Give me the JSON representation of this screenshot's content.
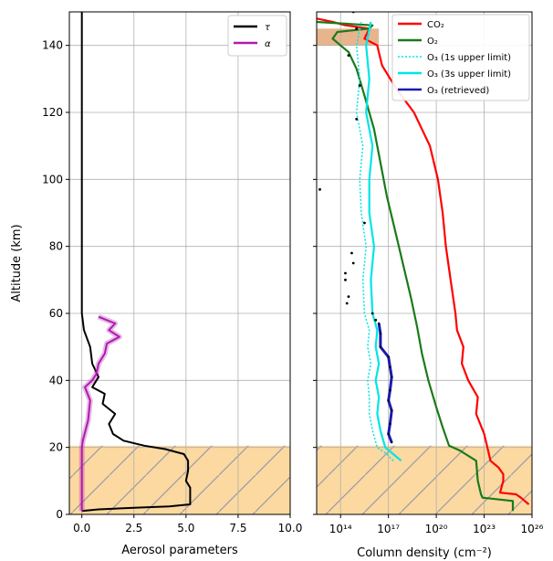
{
  "chart_data": [
    {
      "type": "line",
      "panel": "left",
      "xlabel": "Aerosol parameters",
      "ylabel": "Altitude (km)",
      "xlim": [
        -0.6,
        10.0
      ],
      "ylim": [
        0,
        150
      ],
      "xticks": [
        "0.0",
        "2.5",
        "5.0",
        "7.5",
        "10.0"
      ],
      "xtick_values": [
        0,
        2.5,
        5.0,
        7.5,
        10.0
      ],
      "yticks": [
        "0",
        "20",
        "40",
        "60",
        "80",
        "100",
        "120",
        "140"
      ],
      "ytick_values": [
        0,
        20,
        40,
        60,
        80,
        100,
        120,
        140
      ],
      "grid": true,
      "legend_position": "top-right",
      "shaded_region": {
        "y_range": [
          0,
          20.5
        ],
        "color": "#fbd9a0",
        "hatch": true
      },
      "series": [
        {
          "name": "τ",
          "color": "#000000",
          "points": [
            [
              0,
              1
            ],
            [
              0.8,
              1.5
            ],
            [
              2.5,
              2
            ],
            [
              4.2,
              2.4
            ],
            [
              5.2,
              3
            ],
            [
              5.2,
              8
            ],
            [
              5,
              10
            ],
            [
              5.1,
              13
            ],
            [
              5.1,
              16
            ],
            [
              4.9,
              18
            ],
            [
              4,
              19.5
            ],
            [
              3,
              20.5
            ],
            [
              2,
              22
            ],
            [
              1.5,
              24
            ],
            [
              1.3,
              27
            ],
            [
              1.6,
              30
            ],
            [
              1.0,
              33
            ],
            [
              1.1,
              36
            ],
            [
              0.5,
              38
            ],
            [
              0.8,
              41
            ],
            [
              0.5,
              45
            ],
            [
              0.4,
              50
            ],
            [
              0.1,
              55
            ],
            [
              0,
              60
            ],
            [
              0,
              62
            ],
            [
              0,
              150
            ]
          ]
        },
        {
          "name": "α",
          "color": "#b01ab0",
          "points": [
            [
              0,
              1
            ],
            [
              0,
              20
            ],
            [
              0.05,
              22
            ],
            [
              0.3,
              28
            ],
            [
              0.4,
              34
            ],
            [
              0.15,
              38
            ],
            [
              0.5,
              40
            ],
            [
              0.7,
              42
            ],
            [
              0.8,
              45
            ],
            [
              1.1,
              48
            ],
            [
              1.2,
              51
            ],
            [
              1.8,
              53
            ],
            [
              1.3,
              55
            ],
            [
              1.6,
              57
            ],
            [
              0.8,
              59
            ]
          ]
        }
      ]
    },
    {
      "type": "line",
      "panel": "right",
      "xlabel": "Column density (cm⁻²)",
      "xscale": "log",
      "xlim_log10": [
        12.5,
        26
      ],
      "ylim": [
        0,
        150
      ],
      "xticks": [
        "10¹⁴",
        "10¹⁷",
        "10²⁰",
        "10²³",
        "10²⁶"
      ],
      "xtick_log10": [
        14,
        17,
        20,
        23,
        26
      ],
      "grid": true,
      "legend_position": "top-right",
      "shaded_region": {
        "y_range": [
          0,
          20.5
        ],
        "color": "#fbd9a0",
        "hatch": true
      },
      "shaded_region_top": {
        "y_range": [
          140,
          145
        ],
        "color": "#e8b48c"
      },
      "series": [
        {
          "name": "CO₂",
          "color": "#ff0000",
          "style": "solid",
          "points_log10": [
            [
              25.8,
              3
            ],
            [
              25.3,
              5
            ],
            [
              25,
              6
            ],
            [
              24,
              6.5
            ],
            [
              24.2,
              10
            ],
            [
              24.2,
              12
            ],
            [
              23.9,
              14
            ],
            [
              23.4,
              16
            ],
            [
              23.2,
              20
            ],
            [
              23.0,
              24
            ],
            [
              22.5,
              30
            ],
            [
              22.6,
              35
            ],
            [
              22.0,
              40
            ],
            [
              21.6,
              45
            ],
            [
              21.7,
              50
            ],
            [
              21.3,
              55
            ],
            [
              21.2,
              60
            ],
            [
              20.9,
              70
            ],
            [
              20.6,
              80
            ],
            [
              20.4,
              90
            ],
            [
              20.1,
              100
            ],
            [
              19.6,
              110
            ],
            [
              18.6,
              120
            ],
            [
              17.5,
              127
            ],
            [
              16.6,
              134
            ],
            [
              16.3,
              140
            ],
            [
              15.5,
              142
            ],
            [
              15.8,
              145
            ],
            [
              14.3,
              146
            ],
            [
              13.5,
              147
            ],
            [
              12.5,
              148
            ]
          ]
        },
        {
          "name": "O₂",
          "color": "#1a7a1a",
          "style": "solid",
          "points_log10": [
            [
              24.8,
              1
            ],
            [
              24.8,
              4
            ],
            [
              22.9,
              5
            ],
            [
              22.8,
              6
            ],
            [
              22.6,
              10
            ],
            [
              22.5,
              16
            ],
            [
              21.5,
              19
            ],
            [
              20.8,
              20.5
            ],
            [
              20.4,
              26
            ],
            [
              20.0,
              32
            ],
            [
              19.5,
              40
            ],
            [
              19.1,
              48
            ],
            [
              18.8,
              56
            ],
            [
              18.4,
              65
            ],
            [
              17.9,
              75
            ],
            [
              17.4,
              85
            ],
            [
              16.9,
              95
            ],
            [
              16.5,
              105
            ],
            [
              16.1,
              115
            ],
            [
              15.5,
              125
            ],
            [
              15.0,
              133
            ],
            [
              14.5,
              138
            ],
            [
              14.0,
              140
            ],
            [
              13.5,
              142
            ],
            [
              13.8,
              144
            ],
            [
              15.8,
              145
            ],
            [
              16.0,
              146
            ],
            [
              12.5,
              147
            ]
          ]
        },
        {
          "name": "O₃ (1s upper limit)",
          "color": "#00e5e5",
          "style": "dotted",
          "points_log10": [
            [
              17.3,
              16
            ],
            [
              16.9,
              18
            ],
            [
              16.3,
              20
            ],
            [
              16.0,
              25
            ],
            [
              15.8,
              30
            ],
            [
              15.8,
              35
            ],
            [
              15.7,
              40
            ],
            [
              15.9,
              45
            ],
            [
              15.7,
              50
            ],
            [
              15.8,
              55
            ],
            [
              15.5,
              60
            ],
            [
              15.4,
              70
            ],
            [
              15.6,
              80
            ],
            [
              15.3,
              90
            ],
            [
              15.2,
              100
            ],
            [
              15.4,
              110
            ],
            [
              15.0,
              120
            ],
            [
              15.2,
              130
            ],
            [
              15.0,
              140
            ],
            [
              15.3,
              147
            ]
          ]
        },
        {
          "name": "O₃ (3s upper limit)",
          "color": "#00e5e5",
          "style": "solid",
          "points_log10": [
            [
              17.8,
              16
            ],
            [
              17.3,
              18
            ],
            [
              16.8,
              20
            ],
            [
              16.5,
              25
            ],
            [
              16.3,
              30
            ],
            [
              16.4,
              35
            ],
            [
              16.2,
              40
            ],
            [
              16.4,
              45
            ],
            [
              16.2,
              50
            ],
            [
              16.3,
              55
            ],
            [
              16.0,
              60
            ],
            [
              15.9,
              70
            ],
            [
              16.1,
              80
            ],
            [
              15.8,
              90
            ],
            [
              15.8,
              100
            ],
            [
              16.0,
              110
            ],
            [
              15.6,
              120
            ],
            [
              15.8,
              130
            ],
            [
              15.6,
              140
            ],
            [
              15.9,
              147
            ]
          ]
        },
        {
          "name": "O₃ (retrieved)",
          "color": "#1a1ab0",
          "style": "solid",
          "points_log10": [
            [
              17.2,
              21.5
            ],
            [
              17.0,
              24
            ],
            [
              17.1,
              27
            ],
            [
              17.2,
              31
            ],
            [
              17.0,
              34
            ],
            [
              17.1,
              37
            ],
            [
              17.2,
              41
            ],
            [
              17.1,
              44
            ],
            [
              17.0,
              47
            ],
            [
              16.5,
              50
            ],
            [
              16.5,
              54
            ],
            [
              16.4,
              57
            ]
          ]
        }
      ],
      "scatter_log10": [
        [
          14.8,
          150
        ],
        [
          15.0,
          145
        ],
        [
          14.5,
          137
        ],
        [
          15.2,
          128
        ],
        [
          15.0,
          118
        ],
        [
          12.7,
          97
        ],
        [
          15.5,
          87
        ],
        [
          14.7,
          78
        ],
        [
          14.8,
          75
        ],
        [
          14.3,
          72
        ],
        [
          14.3,
          70
        ],
        [
          14.5,
          65
        ],
        [
          14.4,
          63
        ],
        [
          16.0,
          60
        ],
        [
          16.2,
          58
        ]
      ]
    }
  ]
}
